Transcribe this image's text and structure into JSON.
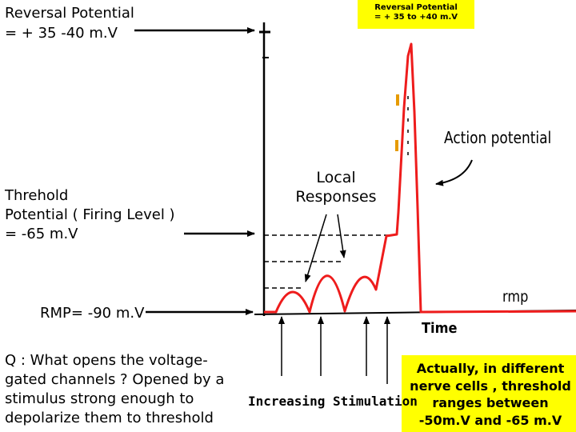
{
  "labels": {
    "reversal_left": "Reversal Potential\n= + 35 -40  m.V",
    "reversal_box": "Reversal Potential\n= + 35  to  +40 m.V",
    "threshold": "Threhold\n Potential ( Firing Level )\n = -65 m.V",
    "rmp_label": "RMP= -90 m.V",
    "local_responses": "Local\nResponses",
    "action_potential": "Action potential",
    "rmp": "rmp",
    "time": "Time",
    "stimulation": "Increasing Stimulation",
    "question": "Q : What opens the voltage-\ngated channels ? Opened by a\nstimulus strong enough to\ndepolarize them to threshold",
    "note": "Actually,  in different\nnerve cells , threshold\nranges between\n-50m.V and -65 m.V"
  },
  "colors": {
    "trace": "#ee1c1c",
    "highlight": "#ffff00",
    "ink": "#000000"
  }
}
